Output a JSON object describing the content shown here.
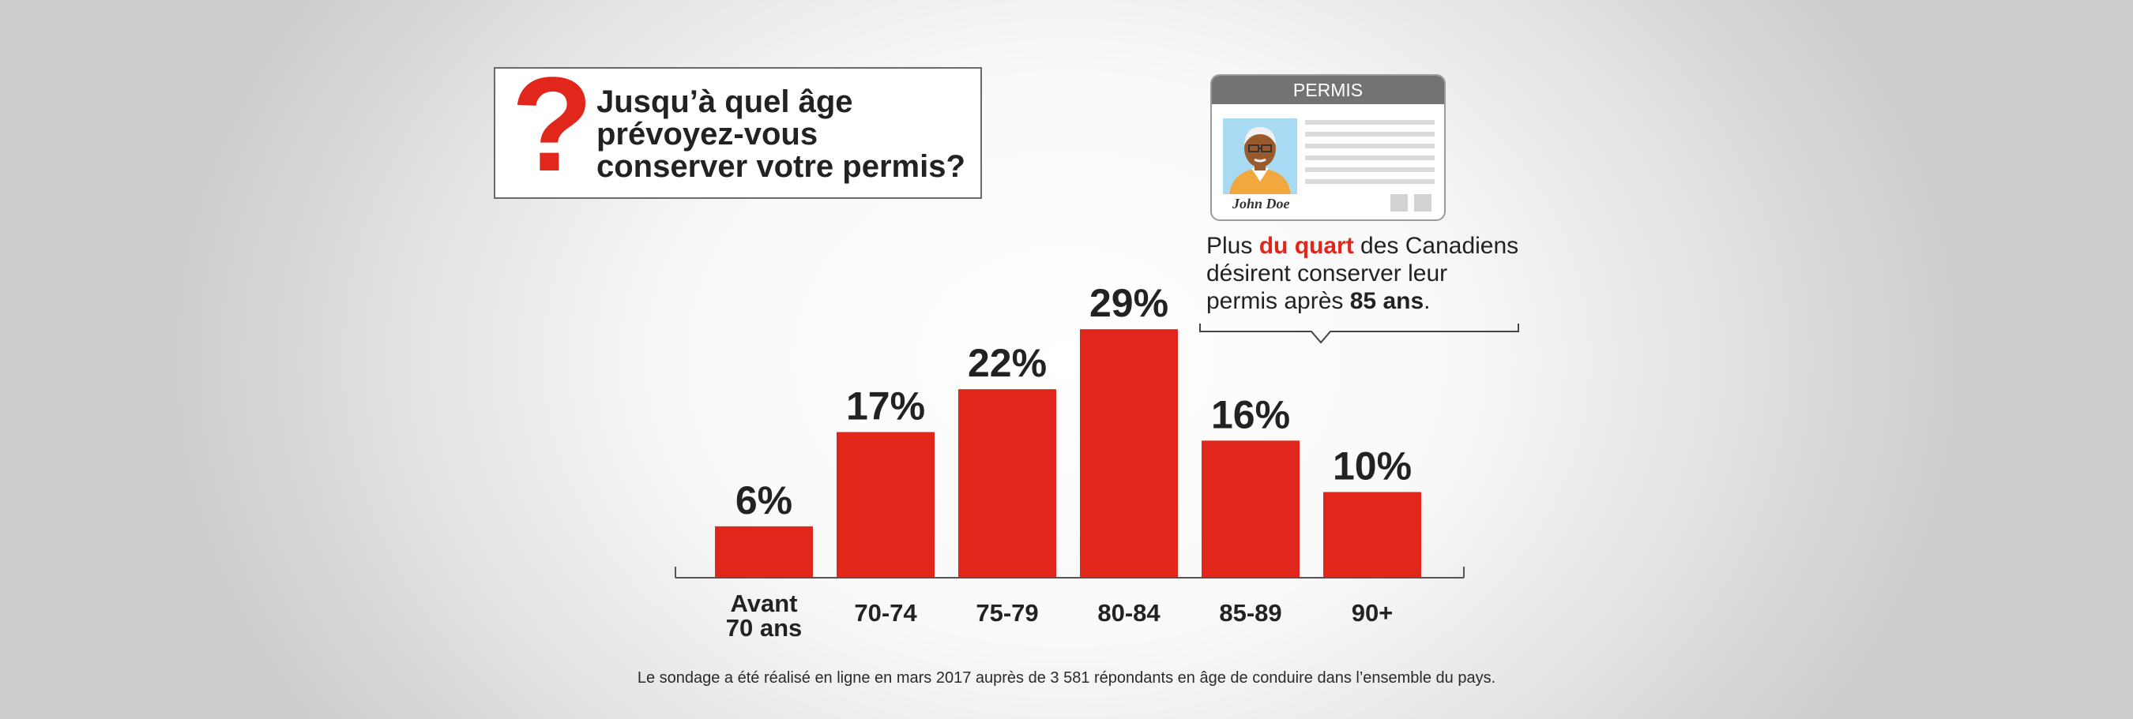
{
  "question": {
    "mark": "?",
    "text": "Jusqu’à quel âge prévoyez-vous conserver votre permis?"
  },
  "license": {
    "header": "PERMIS",
    "name": "John Doe"
  },
  "callout": {
    "before": "Plus ",
    "highlight": "du quart",
    "middle": " des Canadiens désirent conserver leur permis après ",
    "emphasis": "85 ans",
    "after": "."
  },
  "footnote": "Le sondage a été réalisé en ligne en mars 2017 auprès de 3 581 répondants en âge de conduire dans l’ensemble du pays.",
  "colors": {
    "bar": "#e1261c",
    "accent": "#e1261c",
    "text": "#222222",
    "axis": "#555555"
  },
  "chart_data": {
    "type": "bar",
    "title": "Jusqu’à quel âge prévoyez-vous conserver votre permis?",
    "xlabel": "",
    "ylabel": "",
    "ylim": [
      0,
      35
    ],
    "grid": false,
    "categories": [
      [
        "Avant",
        "70 ans"
      ],
      [
        "70-74"
      ],
      [
        "75-79"
      ],
      [
        "80-84"
      ],
      [
        "85-89"
      ],
      [
        "90+"
      ]
    ],
    "values": [
      6,
      17,
      22,
      29,
      16,
      10
    ],
    "value_labels": [
      "6%",
      "17%",
      "22%",
      "29%",
      "16%",
      "10%"
    ],
    "unit": "%"
  }
}
